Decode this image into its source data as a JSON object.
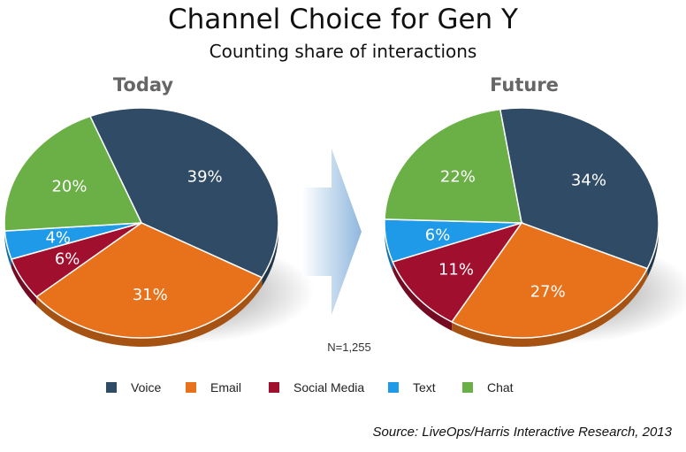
{
  "title": "Channel Choice for Gen Y",
  "subtitle": "Counting share of interactions",
  "sample_note": "N=1,255",
  "source": "Source: LiveOps/Harris Interactive Research, 2013",
  "colors": {
    "Voice": "#2f4b65",
    "Email": "#e7721b",
    "Social Media": "#a10f2f",
    "Text": "#1f9ae8",
    "Chat": "#6ab046"
  },
  "chart_data": [
    {
      "type": "pie",
      "title": "Today",
      "categories": [
        "Voice",
        "Email",
        "Social Media",
        "Text",
        "Chat"
      ],
      "values": [
        39,
        31,
        6,
        4,
        20
      ],
      "labels": [
        "39%",
        "31%",
        "6%",
        "4%",
        "20%"
      ]
    },
    {
      "type": "pie",
      "title": "Future",
      "categories": [
        "Voice",
        "Email",
        "Social Media",
        "Text",
        "Chat"
      ],
      "values": [
        34,
        27,
        11,
        6,
        22
      ],
      "labels": [
        "34%",
        "27%",
        "11%",
        "6%",
        "22%"
      ]
    }
  ],
  "legend": [
    "Voice",
    "Email",
    "Social Media",
    "Text",
    "Chat"
  ]
}
